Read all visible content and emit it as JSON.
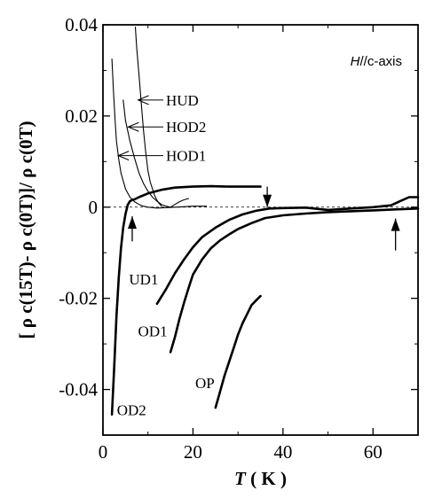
{
  "chart_data": {
    "type": "line",
    "xlabel": {
      "italic": "T",
      "rest": " ( K )"
    },
    "ylabel": "[ ρ c(15T)- ρ c(0T)]/ ρ c(0T)",
    "xlim": [
      0,
      70
    ],
    "ylim": [
      -0.05,
      0.04
    ],
    "x_ticks": [
      {
        "value": 0,
        "label": "0"
      },
      {
        "value": 20,
        "label": "20"
      },
      {
        "value": 40,
        "label": "40"
      },
      {
        "value": 60,
        "label": "60"
      }
    ],
    "y_ticks": [
      {
        "value": 0.04,
        "label": "0.04"
      },
      {
        "value": 0.02,
        "label": "0.02"
      },
      {
        "value": 0,
        "label": "0"
      },
      {
        "value": -0.02,
        "label": "-0.02"
      },
      {
        "value": -0.04,
        "label": "-0.04"
      }
    ],
    "annotation": {
      "italic": "H",
      "rest": "//c-axis"
    },
    "reference_line": {
      "y": 0,
      "style": "dashed"
    },
    "arrows": [
      {
        "x": 36.5,
        "y_from": 0.0045,
        "y_to": 0.0,
        "direction": "down"
      },
      {
        "x": 6.5,
        "y_from": -0.0075,
        "y_to": -0.002,
        "direction": "up"
      },
      {
        "x": 65.0,
        "y_from": -0.0095,
        "y_to": -0.0025,
        "direction": "up"
      }
    ],
    "series": [
      {
        "name": "HUD",
        "label_at": [
          14,
          0.0235
        ],
        "pointer_to": [
          7.8,
          0.0235
        ],
        "x": [
          7.2,
          7.5,
          8.0,
          8.5,
          9.0,
          9.5,
          10.0,
          10.5,
          11.0,
          11.5,
          12.0,
          12.5,
          13.0
        ],
        "y": [
          0.0395,
          0.035,
          0.029,
          0.023,
          0.017,
          0.012,
          0.008,
          0.0055,
          0.004,
          0.0025,
          0.0015,
          0.0008,
          0.0002
        ]
      },
      {
        "name": "HOD2",
        "label_at": [
          14,
          0.0176
        ],
        "pointer_to": [
          5.6,
          0.0176
        ],
        "x": [
          4.5,
          5.0,
          6.0,
          7.0,
          8.0,
          9.0,
          10.0,
          11.0,
          12.0,
          13.0,
          14.0,
          15.0,
          16.0,
          17.0,
          18.0,
          19.0
        ],
        "y": [
          0.0235,
          0.019,
          0.0145,
          0.0108,
          0.0075,
          0.0052,
          0.0035,
          0.0022,
          0.0013,
          0.0006,
          0.0002,
          0.0,
          0.0006,
          0.0012,
          0.0016,
          0.0019
        ]
      },
      {
        "name": "HOD1",
        "label_at": [
          14,
          0.0113
        ],
        "pointer_to": [
          3.4,
          0.0113
        ],
        "x": [
          2.0,
          2.3,
          2.7,
          3.0,
          3.5,
          4.0,
          5.0,
          6.0,
          7.0,
          8.0,
          9.0,
          10.0,
          12.0,
          14.0,
          16.0,
          18.0,
          20.0,
          22.0,
          23.0
        ],
        "y": [
          0.0325,
          0.026,
          0.019,
          0.0145,
          0.0105,
          0.0075,
          0.004,
          0.0022,
          0.0012,
          0.0006,
          0.0002,
          0.0,
          -0.0002,
          -0.0001,
          0.0,
          0.0001,
          0.0002,
          0.0002,
          0.0002
        ]
      },
      {
        "name": "OD2",
        "label_at": [
          3.1,
          -0.0445
        ],
        "x": [
          2.0,
          2.5,
          3.0,
          3.5,
          4.0,
          4.5,
          5.0,
          5.5,
          6.0,
          6.5,
          7.0,
          8.0,
          10.0,
          13.0,
          16.0,
          20.0,
          24.0,
          28.0,
          32.0,
          35.0
        ],
        "y": [
          -0.0455,
          -0.035,
          -0.024,
          -0.0155,
          -0.009,
          -0.0045,
          -0.0015,
          0.0005,
          0.0013,
          0.0016,
          0.0017,
          0.0022,
          0.003,
          0.0038,
          0.0043,
          0.0045,
          0.0046,
          0.0045,
          0.0045,
          0.0045
        ]
      },
      {
        "name": "UD1",
        "label_at": [
          5.8,
          -0.0158
        ],
        "x": [
          12.0,
          14.0,
          16.0,
          18.0,
          20.0,
          22.0,
          25.0,
          28.0,
          31.0,
          34.0,
          37.0,
          40.0,
          45.0,
          50.0,
          55.0,
          60.0,
          64.0,
          66.0,
          68.0,
          70.0
        ],
        "y": [
          -0.0212,
          -0.018,
          -0.0145,
          -0.0115,
          -0.0088,
          -0.0066,
          -0.0045,
          -0.0028,
          -0.0016,
          -0.0008,
          -0.0003,
          -0.0002,
          -0.0001,
          -0.0006,
          -0.0003,
          0.0,
          0.0004,
          0.0013,
          0.0022,
          0.0022
        ]
      },
      {
        "name": "OD1",
        "label_at": [
          7.8,
          -0.0272
        ],
        "x": [
          15.0,
          16.0,
          17.0,
          18.0,
          19.0,
          20.0,
          22.0,
          24.0,
          26.0,
          28.0,
          30.0,
          33.0,
          36.0,
          40.0,
          45.0,
          50.0,
          55.0,
          60.0,
          65.0,
          70.0
        ],
        "y": [
          -0.0318,
          -0.0285,
          -0.0245,
          -0.021,
          -0.0178,
          -0.0148,
          -0.0115,
          -0.009,
          -0.0073,
          -0.006,
          -0.0048,
          -0.0035,
          -0.0024,
          -0.0018,
          -0.0014,
          -0.0011,
          -0.0009,
          -0.0007,
          -0.0005,
          -0.0003
        ]
      },
      {
        "name": "OP",
        "label_at": [
          20.5,
          -0.0385
        ],
        "x": [
          25.0,
          26.0,
          27.0,
          28.0,
          29.0,
          30.0,
          31.0,
          32.0,
          33.0,
          34.0,
          35.0
        ],
        "y": [
          -0.044,
          -0.0405,
          -0.037,
          -0.034,
          -0.031,
          -0.028,
          -0.0255,
          -0.0235,
          -0.0215,
          -0.0205,
          -0.0195
        ]
      }
    ]
  }
}
